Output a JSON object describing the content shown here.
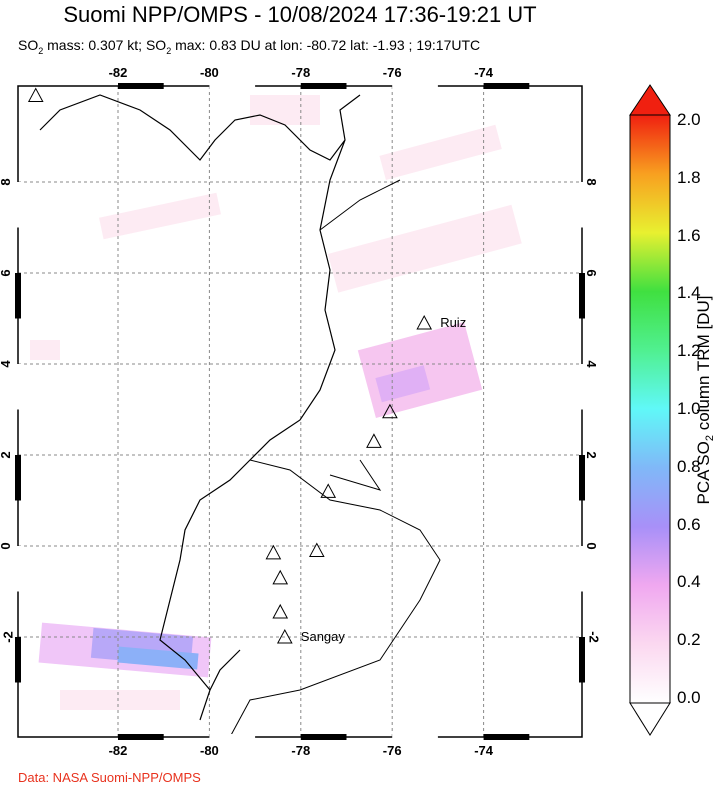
{
  "header": {
    "title": "Suomi NPP/OMPS - 10/08/2024 17:36-19:21 UT",
    "subtitle_parts": [
      "SO",
      "2",
      " mass: 0.307 kt; SO",
      "2",
      " max: 0.83 DU at lon: -80.72 lat: -1.93 ; 19:17UTC"
    ]
  },
  "map": {
    "lon_ticks": [
      "-82",
      "-80",
      "-78",
      "-76",
      "-74"
    ],
    "lat_ticks": [
      "8",
      "6",
      "4",
      "2",
      "0",
      "-2"
    ],
    "volcanoes": [
      {
        "name": "Ruiz",
        "lon": -75.3,
        "lat": 4.9
      },
      {
        "name": "",
        "lon": -76.05,
        "lat": 2.95
      },
      {
        "name": "",
        "lon": -76.4,
        "lat": 2.3
      },
      {
        "name": "",
        "lon": -77.4,
        "lat": 1.2
      },
      {
        "name": "",
        "lon": -77.65,
        "lat": -0.1
      },
      {
        "name": "",
        "lon": -78.6,
        "lat": -0.15
      },
      {
        "name": "",
        "lon": -78.45,
        "lat": -0.7
      },
      {
        "name": "",
        "lon": -78.45,
        "lat": -1.45
      },
      {
        "name": "Sangay",
        "lon": -78.35,
        "lat": -2.0
      },
      {
        "name": "",
        "lon": -83.8,
        "lat": 9.9
      }
    ]
  },
  "colorbar": {
    "title_parts": [
      "PCA SO",
      "2",
      " column TRM [DU]"
    ],
    "labels": [
      "2.0",
      "1.8",
      "1.6",
      "1.4",
      "1.2",
      "1.0",
      "0.8",
      "0.6",
      "0.4",
      "0.2",
      "0.0"
    ],
    "min": 0,
    "max": 2
  },
  "credit": "Data: NASA Suomi-NPP/OMPS"
}
